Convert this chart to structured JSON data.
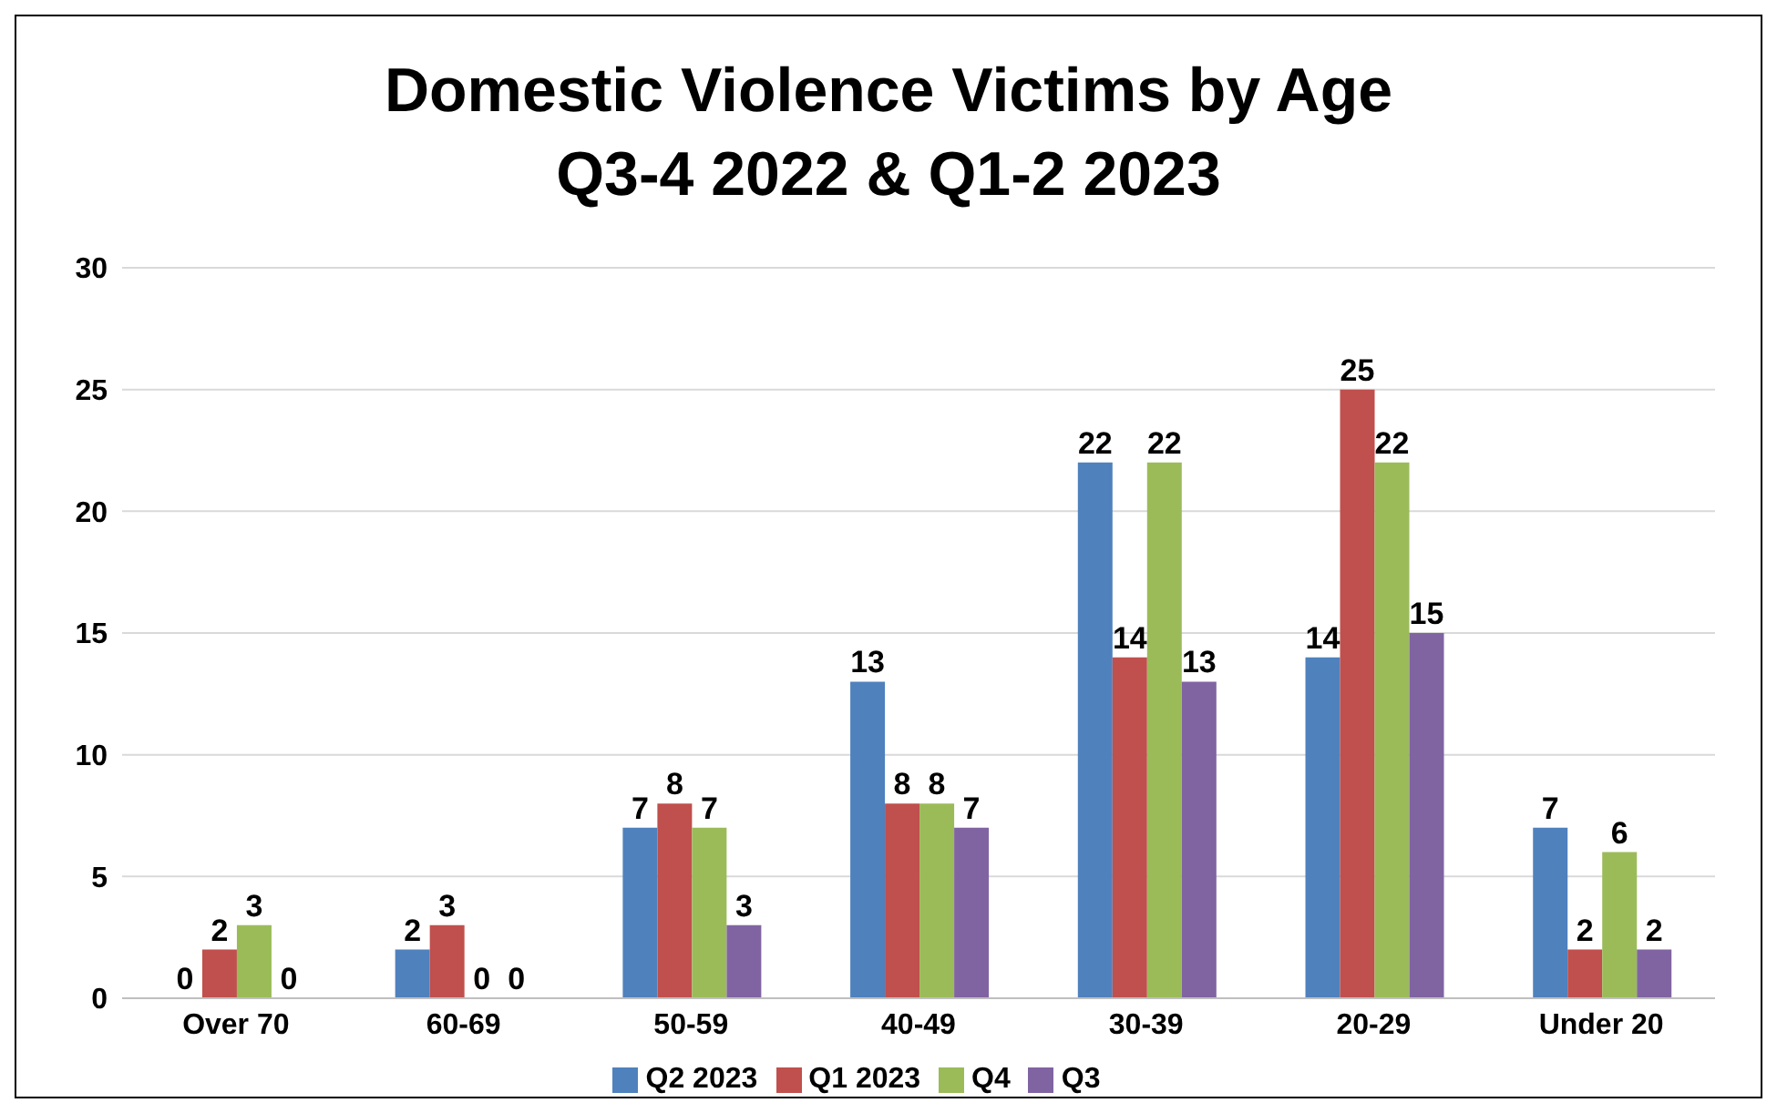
{
  "chart_data": {
    "type": "bar",
    "title": "Domestic Violence Victims by Age\nQ3-4 2022 & Q1-2 2023",
    "categories": [
      "Over 70",
      "60-69",
      "50-59",
      "40-49",
      "30-39",
      "20-29",
      "Under 20"
    ],
    "series": [
      {
        "name": "Q2 2023",
        "color": "#4f81bd",
        "values": [
          0,
          2,
          7,
          13,
          22,
          14,
          7
        ]
      },
      {
        "name": "Q1 2023",
        "color": "#c0504d",
        "values": [
          2,
          3,
          8,
          8,
          14,
          25,
          2
        ]
      },
      {
        "name": "Q4",
        "color": "#9bbb59",
        "values": [
          3,
          0,
          7,
          8,
          22,
          22,
          6
        ]
      },
      {
        "name": "Q3",
        "color": "#8064a2",
        "values": [
          0,
          0,
          3,
          7,
          13,
          15,
          2
        ]
      }
    ],
    "ylim": [
      0,
      30
    ],
    "yticks": [
      0,
      5,
      10,
      15,
      20,
      25,
      30
    ],
    "grid": "y",
    "legend": "bottom",
    "data_labels": true
  }
}
